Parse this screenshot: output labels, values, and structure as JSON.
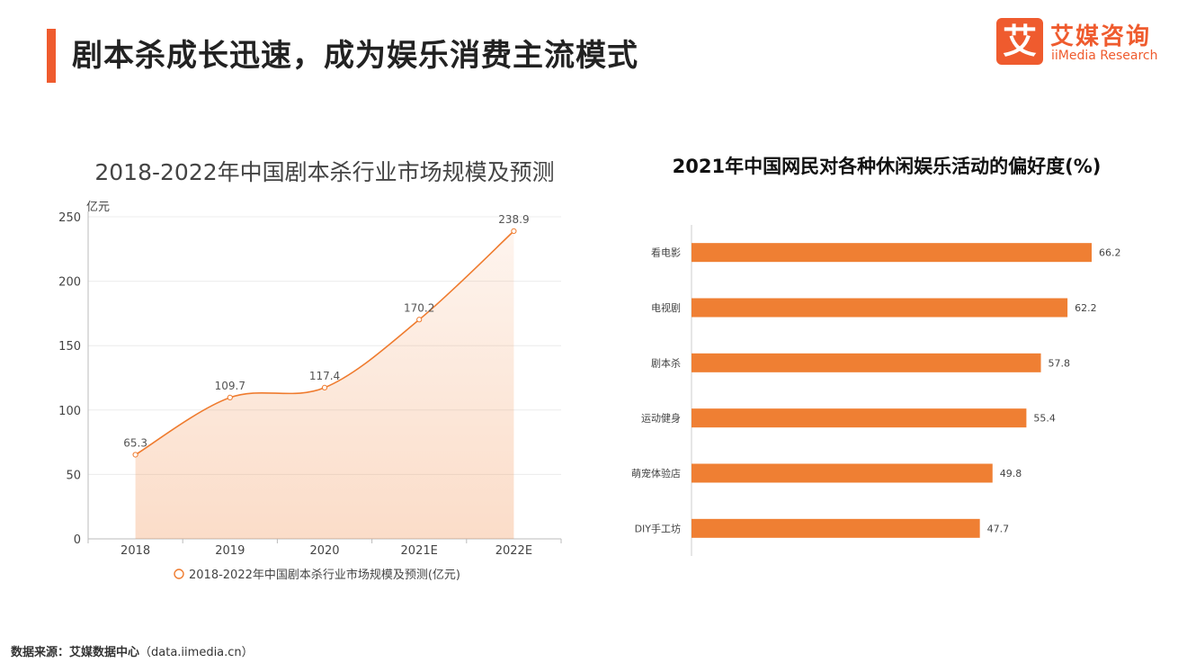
{
  "header": {
    "title": "剧本杀成长迅速，成为娱乐消费主流模式",
    "accent_color": "#ef5b2e"
  },
  "logo": {
    "mark": "艾",
    "name_cn": "艾媒咨询",
    "name_en": "iiMedia Research"
  },
  "chart_data": [
    {
      "type": "area",
      "title": "2018-2022年中国剧本杀行业市场规模及预测",
      "ylabel": "亿元",
      "categories": [
        "2018",
        "2019",
        "2020",
        "2021E",
        "2022E"
      ],
      "series": [
        {
          "name": "2018-2022年中国剧本杀行业市场规模及预测(亿元)",
          "values": [
            65.3,
            109.7,
            117.4,
            170.2,
            238.9
          ]
        }
      ],
      "data_labels": [
        "65.3",
        "109.7",
        "117.4",
        "170.2",
        "238.9"
      ],
      "yticks": [
        0,
        50,
        100,
        150,
        200,
        250
      ],
      "ylim": [
        0,
        250
      ],
      "grid": true,
      "legend": "bottom",
      "color": "#ef7b2e"
    },
    {
      "type": "bar",
      "orientation": "horizontal",
      "title": "2021年中国网民对各种休闲娱乐活动的偏好度(%)",
      "categories": [
        "看电影",
        "电视剧",
        "剧本杀",
        "运动健身",
        "萌宠体验店",
        "DIY手工坊"
      ],
      "values": [
        66.2,
        62.2,
        57.8,
        55.4,
        49.8,
        47.7
      ],
      "data_labels": [
        "66.2",
        "62.2",
        "57.8",
        "55.4",
        "49.8",
        "47.7"
      ],
      "xlim": [
        0,
        70
      ],
      "grid": false,
      "color": "#ef7f33"
    }
  ],
  "footer": {
    "source_label": "数据来源：艾媒数据中心",
    "source_site": "（data.iimedia.cn）"
  }
}
